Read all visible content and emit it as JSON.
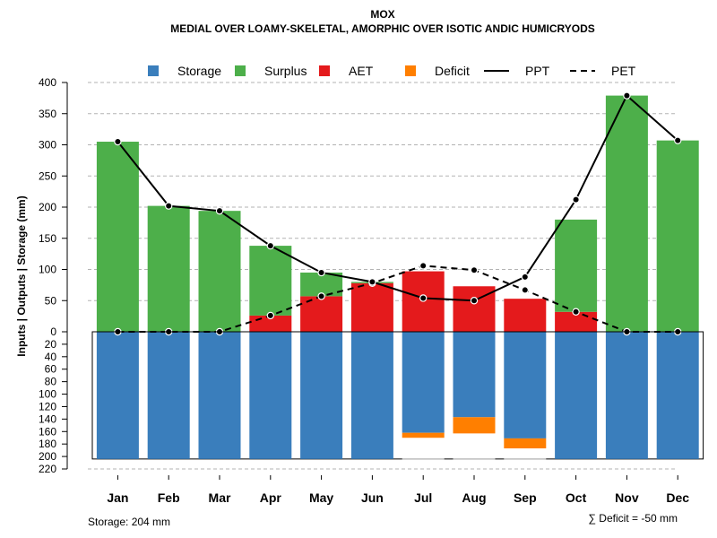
{
  "chart_data": {
    "type": "bar",
    "title": "MOX",
    "subtitle": "MEDIAL OVER LOAMY-SKELETAL, AMORPHIC OVER ISOTIC ANDIC HUMICRYODS",
    "ylabel": "Inputs | Outputs | Storage    (mm)",
    "categories": [
      "Jan",
      "Feb",
      "Mar",
      "Apr",
      "May",
      "Jun",
      "Jul",
      "Aug",
      "Sep",
      "Oct",
      "Nov",
      "Dec"
    ],
    "upper_ticks": [
      "0",
      "50",
      "100",
      "150",
      "200",
      "250",
      "300",
      "350",
      "400"
    ],
    "lower_ticks": [
      "0",
      "20",
      "40",
      "60",
      "80",
      "100",
      "120",
      "140",
      "160",
      "180",
      "200",
      "220"
    ],
    "upper_ylim": [
      0,
      400
    ],
    "lower_ylim": [
      0,
      220
    ],
    "storage_capacity": 204,
    "series": [
      {
        "name": "Storage",
        "color": "#3a7ebc",
        "values": [
          204,
          204,
          204,
          204,
          204,
          204,
          162,
          137,
          171,
          204,
          204,
          204
        ]
      },
      {
        "name": "Surplus",
        "color": "#4daf4a",
        "values": [
          305,
          202,
          194,
          112,
          38,
          2,
          0,
          0,
          0,
          148,
          379,
          307
        ]
      },
      {
        "name": "AET",
        "color": "#e41a1c",
        "values": [
          0,
          0,
          0,
          26,
          57,
          78,
          97,
          73,
          53,
          32,
          0,
          0
        ]
      },
      {
        "name": "Deficit",
        "color": "#ff7f00",
        "values": [
          0,
          0,
          0,
          0,
          0,
          0,
          8,
          26,
          16,
          0,
          0,
          0
        ]
      },
      {
        "name": "PPT",
        "color": "#000000",
        "style": "solid",
        "values": [
          305,
          202,
          194,
          138,
          95,
          80,
          54,
          50,
          88,
          212,
          379,
          307
        ]
      },
      {
        "name": "PET",
        "color": "#000000",
        "style": "dashed",
        "values": [
          0,
          0,
          0,
          26,
          57,
          78,
          106,
          99,
          67,
          32,
          0,
          0
        ]
      }
    ],
    "legend": [
      "Storage",
      "Surplus",
      "AET",
      "Deficit",
      "PPT",
      "PET"
    ],
    "legend_position": "top"
  },
  "footer": {
    "storage_label": "Storage: 204 mm",
    "deficit_label": "∑ Deficit = -50 mm"
  }
}
